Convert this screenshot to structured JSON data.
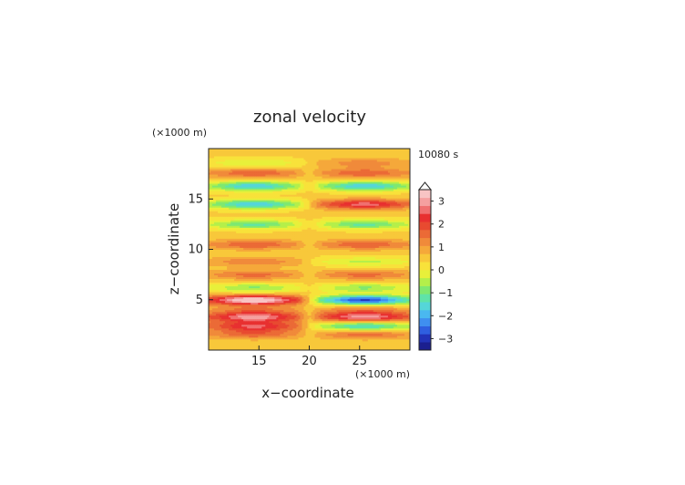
{
  "chart_data": {
    "type": "heatmap",
    "title": "zonal velocity",
    "xlabel": "x−coordinate",
    "ylabel": "z−coordinate",
    "x_unit": "(×1000 m)",
    "y_unit": "(×1000 m)",
    "time_label": "10080 s",
    "xlim": [
      10,
      30
    ],
    "ylim": [
      0,
      20
    ],
    "x_ticks": [
      "15",
      "20",
      "25"
    ],
    "x_tick_values": [
      15,
      20,
      25
    ],
    "y_ticks": [
      "5",
      "10",
      "15"
    ],
    "y_tick_values": [
      5,
      10,
      15
    ],
    "colorbar": {
      "min": -3.5,
      "max": 3.5,
      "step": 0.25,
      "extend": "max",
      "tick_labels": [
        "3",
        "2",
        "1",
        "0",
        "−1",
        "−2",
        "−3"
      ],
      "tick_values": [
        3,
        2,
        1,
        0,
        -1,
        -2,
        -3
      ],
      "colors": [
        "#1b1f8f",
        "#2233b8",
        "#2f5fe0",
        "#3f8ff0",
        "#4ab8f0",
        "#55d6d8",
        "#5fe3a8",
        "#7fe870",
        "#b4ef4a",
        "#e8f03a",
        "#f8e23a",
        "#f8c83a",
        "#f5a83a",
        "#f08a3a",
        "#eb6a36",
        "#e84a30",
        "#e83030",
        "#f07070",
        "#f5a0a0",
        "#f8c4c4"
      ]
    },
    "bands": [
      {
        "z": 18.6,
        "amp": 0.8
      },
      {
        "z": 17.6,
        "amp": 1.3
      },
      {
        "z": 16.3,
        "amp": -2.2
      },
      {
        "z": 14.5,
        "amp": 2.2
      },
      {
        "z": 12.5,
        "amp": -1.6
      },
      {
        "z": 10.5,
        "amp": 1.3
      },
      {
        "z": 8.8,
        "amp": -0.9
      },
      {
        "z": 7.5,
        "amp": 1.1
      },
      {
        "z": 6.2,
        "amp": -1.2
      },
      {
        "z": 5.0,
        "amp": -3.3
      },
      {
        "z": 4.0,
        "amp": 0.9
      },
      {
        "z": 3.3,
        "amp": 2.5
      },
      {
        "z": 2.4,
        "amp": -2.0
      },
      {
        "z": 1.6,
        "amp": 1.2
      }
    ],
    "x_centers": [
      14.5,
      25.5
    ],
    "x_reversal": 20.0,
    "background_value": 0.45
  }
}
